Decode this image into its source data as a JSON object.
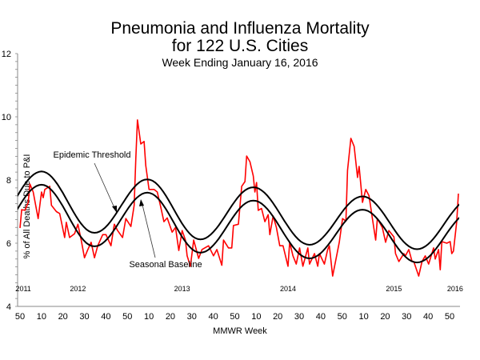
{
  "chart_data": {
    "type": "line",
    "title": "Pneumonia and Influenza Mortality",
    "title_line2": "for 122 U.S. Cities",
    "subtitle": "Week Ending  January 16, 2016",
    "xlabel": "MMWR Week",
    "ylabel": "% of All Deaths Due to P&I",
    "ylim": [
      4,
      12
    ],
    "y_ticks": [
      "4",
      "6",
      "8",
      "10",
      "12"
    ],
    "x_tick_labels": [
      "50",
      "10",
      "20",
      "30",
      "40",
      "50",
      "10",
      "20",
      "30",
      "40",
      "50",
      "10",
      "20",
      "30",
      "40",
      "50",
      "10",
      "20",
      "30",
      "40",
      "50"
    ],
    "year_labels": [
      {
        "label": "2011",
        "week": 2
      },
      {
        "label": "2012",
        "week": 35
      },
      {
        "label": "2013",
        "week": 98
      },
      {
        "label": "2014",
        "week": 162
      },
      {
        "label": "2015",
        "week": 226
      },
      {
        "label": "2016",
        "week": 263
      }
    ],
    "x_range_weeks": [
      0,
      265
    ],
    "grid": false,
    "legend": "none",
    "annotations": [
      {
        "text": "Epidemic Threshold",
        "target_series": "threshold"
      },
      {
        "text": "Seasonal Baseline",
        "target_series": "baseline"
      }
    ],
    "series": [
      {
        "id": "observed",
        "color": "#ff0000",
        "points": [
          [
            0,
            6.48
          ],
          [
            1,
            7.06
          ],
          [
            3,
            7.04
          ],
          [
            5,
            7.29
          ],
          [
            6,
            7.87
          ],
          [
            8,
            7.62
          ],
          [
            11,
            6.78
          ],
          [
            13,
            7.62
          ],
          [
            14,
            7.44
          ],
          [
            15,
            7.7
          ],
          [
            18,
            7.8
          ],
          [
            19,
            7.2
          ],
          [
            22,
            7.0
          ],
          [
            24,
            6.94
          ],
          [
            27,
            6.18
          ],
          [
            28,
            6.66
          ],
          [
            30,
            6.18
          ],
          [
            33,
            6.3
          ],
          [
            35,
            6.6
          ],
          [
            37,
            6.1
          ],
          [
            39,
            5.54
          ],
          [
            41,
            5.8
          ],
          [
            43,
            6.03
          ],
          [
            45,
            5.54
          ],
          [
            47,
            5.92
          ],
          [
            50,
            6.27
          ],
          [
            52,
            6.27
          ],
          [
            55,
            5.92
          ],
          [
            57,
            6.6
          ],
          [
            59,
            6.4
          ],
          [
            62,
            6.18
          ],
          [
            64,
            6.78
          ],
          [
            67,
            6.53
          ],
          [
            69,
            7.2
          ],
          [
            70,
            8.7
          ],
          [
            71,
            9.9
          ],
          [
            73,
            9.14
          ],
          [
            75,
            9.22
          ],
          [
            76,
            8.46
          ],
          [
            78,
            7.7
          ],
          [
            81,
            7.7
          ],
          [
            83,
            7.62
          ],
          [
            85,
            7.16
          ],
          [
            87,
            6.68
          ],
          [
            89,
            6.8
          ],
          [
            92,
            6.35
          ],
          [
            94,
            6.5
          ],
          [
            96,
            5.77
          ],
          [
            98,
            6.4
          ],
          [
            100,
            6.1
          ],
          [
            101,
            5.6
          ],
          [
            103,
            5.27
          ],
          [
            105,
            6.1
          ],
          [
            108,
            5.52
          ],
          [
            110,
            5.8
          ],
          [
            114,
            5.92
          ],
          [
            117,
            5.6
          ],
          [
            119,
            5.8
          ],
          [
            122,
            5.3
          ],
          [
            123,
            6.1
          ],
          [
            126,
            5.85
          ],
          [
            128,
            5.85
          ],
          [
            129,
            6.56
          ],
          [
            132,
            6.6
          ],
          [
            134,
            7.8
          ],
          [
            136,
            7.95
          ],
          [
            137,
            8.76
          ],
          [
            139,
            8.58
          ],
          [
            141,
            8.13
          ],
          [
            142,
            7.62
          ],
          [
            143,
            7.92
          ],
          [
            144,
            7.04
          ],
          [
            146,
            7.1
          ],
          [
            148,
            6.68
          ],
          [
            150,
            6.9
          ],
          [
            151,
            6.27
          ],
          [
            153,
            6.86
          ],
          [
            155,
            6.5
          ],
          [
            157,
            5.92
          ],
          [
            159,
            5.92
          ],
          [
            162,
            5.27
          ],
          [
            163,
            6.03
          ],
          [
            165,
            5.6
          ],
          [
            167,
            5.34
          ],
          [
            169,
            5.85
          ],
          [
            171,
            5.27
          ],
          [
            174,
            5.85
          ],
          [
            175,
            5.34
          ],
          [
            178,
            5.67
          ],
          [
            180,
            5.27
          ],
          [
            181,
            5.67
          ],
          [
            184,
            5.34
          ],
          [
            186,
            5.8
          ],
          [
            187,
            5.92
          ],
          [
            189,
            4.96
          ],
          [
            191,
            5.5
          ],
          [
            193,
            6.03
          ],
          [
            195,
            6.78
          ],
          [
            197,
            6.7
          ],
          [
            198,
            8.3
          ],
          [
            200,
            9.32
          ],
          [
            202,
            9.06
          ],
          [
            204,
            8.08
          ],
          [
            205,
            8.43
          ],
          [
            207,
            7.29
          ],
          [
            209,
            7.7
          ],
          [
            211,
            7.5
          ],
          [
            213,
            6.78
          ],
          [
            215,
            6.1
          ],
          [
            216,
            6.78
          ],
          [
            219,
            6.5
          ],
          [
            221,
            6.03
          ],
          [
            223,
            6.4
          ],
          [
            226,
            6.2
          ],
          [
            227,
            5.67
          ],
          [
            229,
            5.42
          ],
          [
            232,
            5.67
          ],
          [
            233,
            5.6
          ],
          [
            235,
            5.8
          ],
          [
            237,
            5.42
          ],
          [
            238,
            5.42
          ],
          [
            241,
            4.96
          ],
          [
            243,
            5.42
          ],
          [
            245,
            5.6
          ],
          [
            247,
            5.34
          ],
          [
            250,
            5.85
          ],
          [
            251,
            5.5
          ],
          [
            253,
            5.8
          ],
          [
            254,
            5.16
          ],
          [
            255,
            6.05
          ],
          [
            258,
            6.0
          ],
          [
            260,
            6.05
          ],
          [
            261,
            5.67
          ],
          [
            262,
            5.75
          ],
          [
            264,
            6.68
          ],
          [
            265,
            7.57
          ]
        ]
      },
      {
        "id": "threshold",
        "color": "#000000",
        "extrema": [
          [
            -19,
            6.48
          ],
          [
            13,
            8.27
          ],
          [
            45,
            6.33
          ],
          [
            77,
            8.02
          ],
          [
            109,
            6.12
          ],
          [
            141,
            7.77
          ],
          [
            175,
            5.95
          ],
          [
            207,
            7.48
          ],
          [
            240,
            5.81
          ],
          [
            273,
            7.42
          ]
        ]
      },
      {
        "id": "baseline",
        "color": "#000000",
        "extrema": [
          [
            -19,
            6.05
          ],
          [
            13,
            7.85
          ],
          [
            45,
            5.9
          ],
          [
            77,
            7.6
          ],
          [
            109,
            5.7
          ],
          [
            141,
            7.35
          ],
          [
            175,
            5.52
          ],
          [
            207,
            7.06
          ],
          [
            240,
            5.39
          ],
          [
            273,
            7.0
          ]
        ]
      }
    ]
  }
}
